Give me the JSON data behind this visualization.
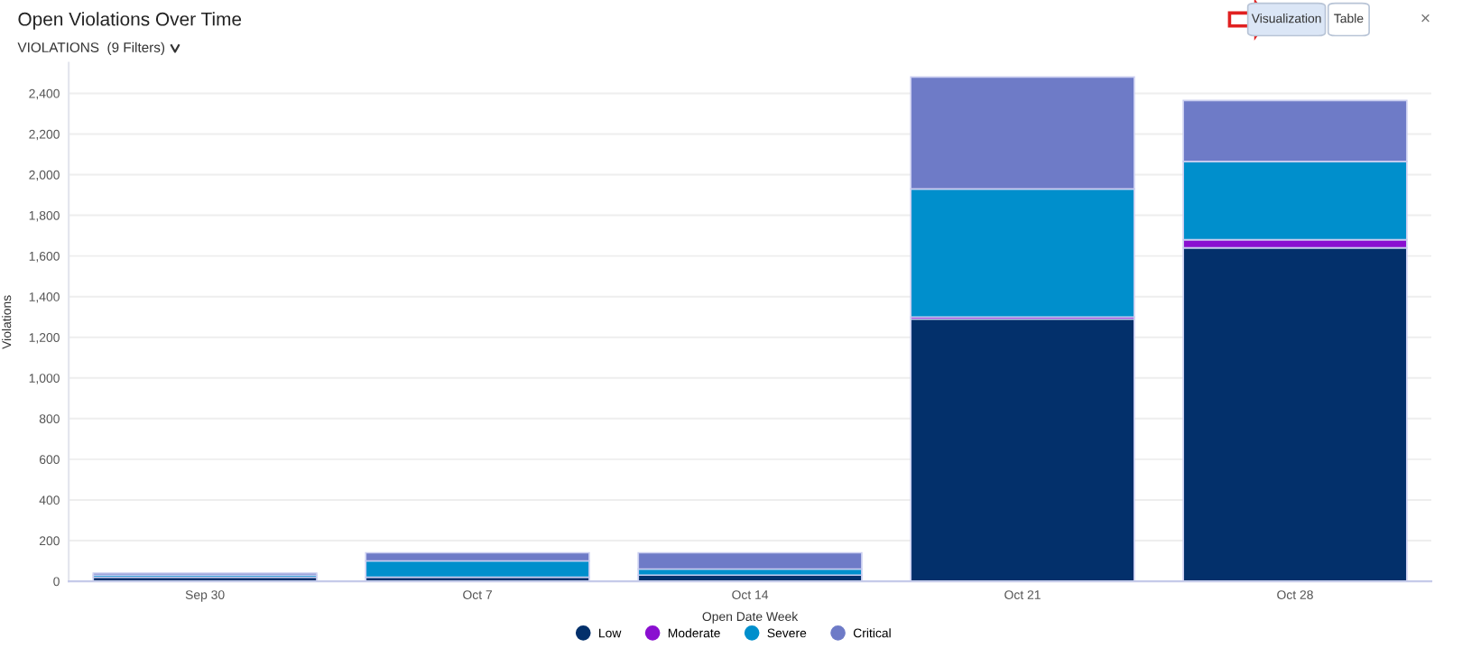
{
  "chart_data": {
    "type": "bar",
    "title": "Open Violations Over Time",
    "subtitle": "VIOLATIONS  (9 Filters)",
    "xlabel": "Open Date Week",
    "ylabel": "Violations",
    "annotations": [
      "Visualization",
      "Table",
      "×"
    ],
    "categories": [
      "Sep 30",
      "Oct 7",
      "Oct 14",
      "Oct 21",
      "Oct 28"
    ],
    "stacked": true,
    "series": [
      {
        "name": "Low",
        "color": "#03306b",
        "values": [
          20,
          20,
          30,
          1290,
          1640
        ]
      },
      {
        "name": "Moderate",
        "color": "#8a0fd0",
        "values": [
          0,
          0,
          0,
          10,
          40
        ]
      },
      {
        "name": "Severe",
        "color": "#008fcc",
        "values": [
          10,
          80,
          30,
          630,
          385
        ]
      },
      {
        "name": "Critical",
        "color": "#6e7bc7",
        "values": [
          10,
          40,
          80,
          550,
          300
        ]
      }
    ],
    "ylim": [
      0,
      2550
    ],
    "yticks": [
      0,
      200,
      400,
      600,
      800,
      {
        "value": 1000,
        "label": "1,000"
      },
      {
        "value": 1200,
        "label": "1,200"
      },
      {
        "value": 1400,
        "label": "1,400"
      },
      {
        "value": 1600,
        "label": "1,600"
      },
      {
        "value": 1800,
        "label": "1,800"
      },
      {
        "value": 2000,
        "label": "2,000"
      },
      {
        "value": 2200,
        "label": "2,200"
      },
      {
        "value": 2400,
        "label": "2,400"
      }
    ],
    "grid": "y",
    "legend": "bottom"
  }
}
